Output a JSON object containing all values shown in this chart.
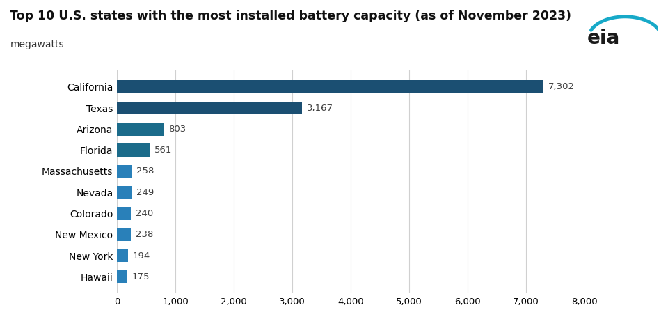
{
  "title": "Top 10 U.S. states with the most installed battery capacity (as of November 2023)",
  "subtitle": "megawatts",
  "categories": [
    "California",
    "Texas",
    "Arizona",
    "Florida",
    "Massachusetts",
    "Nevada",
    "Colorado",
    "New Mexico",
    "New York",
    "Hawaii"
  ],
  "values": [
    7302,
    3167,
    803,
    561,
    258,
    249,
    240,
    238,
    194,
    175
  ],
  "bar_colors": [
    "#1b4f72",
    "#1b4f72",
    "#1b6b8a",
    "#1b6b8a",
    "#2980b9",
    "#2980b9",
    "#2980b9",
    "#2980b9",
    "#2980b9",
    "#2980b9"
  ],
  "background_color": "#ffffff",
  "xlim": [
    0,
    8000
  ],
  "xticks": [
    0,
    1000,
    2000,
    3000,
    4000,
    5000,
    6000,
    7000,
    8000
  ],
  "xtick_labels": [
    "0",
    "1,000",
    "2,000",
    "3,000",
    "4,000",
    "5,000",
    "6,000",
    "7,000",
    "8,000"
  ],
  "title_fontsize": 12.5,
  "subtitle_fontsize": 10,
  "ytick_fontsize": 10,
  "xtick_fontsize": 9.5,
  "value_label_fontsize": 9.5,
  "value_label_color": "#404040",
  "grid_color": "#d0d0d0",
  "bar_height": 0.62
}
